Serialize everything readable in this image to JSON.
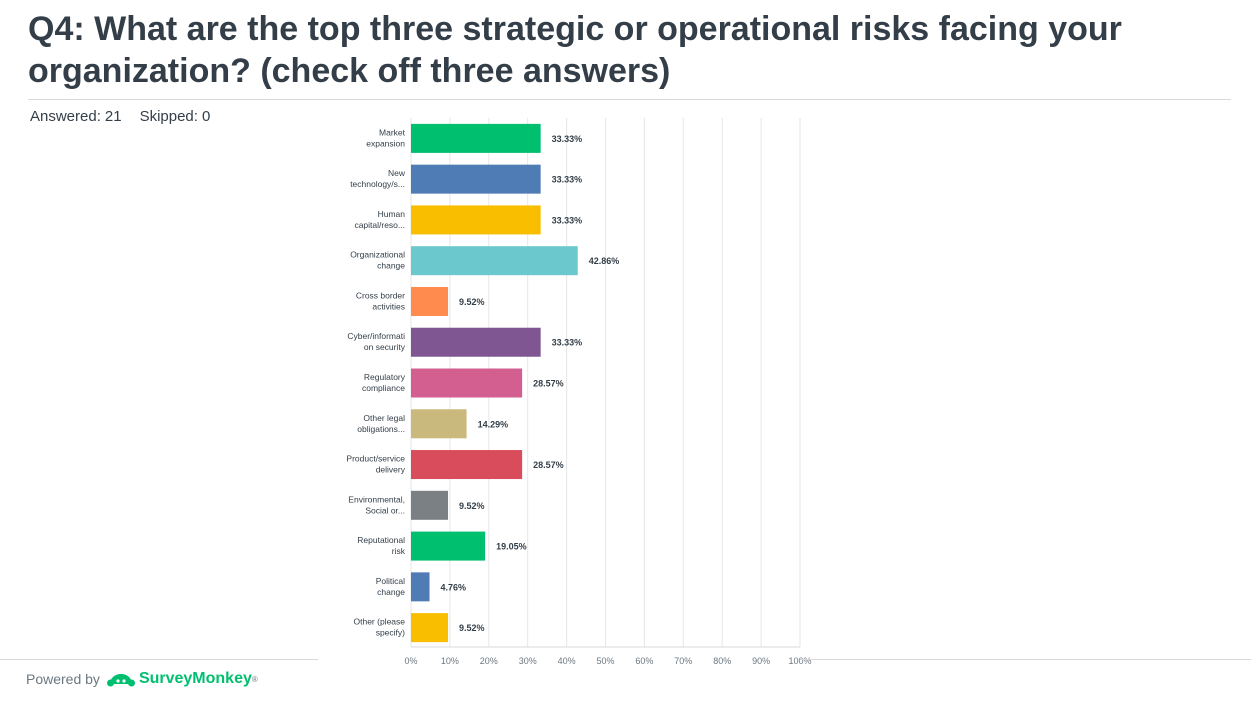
{
  "question": {
    "title": "Q4: What are the top three strategic or operational risks facing your organization? (check off three answers)",
    "answered_label": "Answered:",
    "answered_value": "21",
    "skipped_label": "Skipped:",
    "skipped_value": "0"
  },
  "footer": {
    "powered_by": "Powered by",
    "brand": "SurveyMonkey",
    "trademark": "®"
  },
  "chart_data": {
    "type": "bar",
    "orientation": "horizontal",
    "categories": [
      [
        "Market",
        "expansion"
      ],
      [
        "New",
        "technology/s..."
      ],
      [
        "Human",
        "capital/reso..."
      ],
      [
        "Organizational",
        "change"
      ],
      [
        "Cross border",
        "activities"
      ],
      [
        "Cyber/informati",
        "on security"
      ],
      [
        "Regulatory",
        "compliance"
      ],
      [
        "Other legal",
        "obligations..."
      ],
      [
        "Product/service",
        "delivery"
      ],
      [
        "Environmental,",
        "Social or..."
      ],
      [
        "Reputational",
        "risk"
      ],
      [
        "Political",
        "change"
      ],
      [
        "Other (please",
        "specify)"
      ]
    ],
    "values": [
      33.33,
      33.33,
      33.33,
      42.86,
      9.52,
      33.33,
      28.57,
      14.29,
      28.57,
      9.52,
      19.05,
      4.76,
      9.52
    ],
    "value_labels": [
      "33.33%",
      "33.33%",
      "33.33%",
      "42.86%",
      "9.52%",
      "33.33%",
      "28.57%",
      "14.29%",
      "28.57%",
      "9.52%",
      "19.05%",
      "4.76%",
      "9.52%"
    ],
    "colors": [
      "#00bf6f",
      "#507cb6",
      "#f9be00",
      "#6bc8cd",
      "#ff8b4f",
      "#7f5691",
      "#d25f90",
      "#c9b97d",
      "#d84c5c",
      "#7b8085",
      "#00bf6f",
      "#507cb6",
      "#f9be00"
    ],
    "xlim": [
      0,
      100
    ],
    "xticks": [
      "0%",
      "10%",
      "20%",
      "30%",
      "40%",
      "50%",
      "60%",
      "70%",
      "80%",
      "90%",
      "100%"
    ],
    "grid": true,
    "title": "",
    "xlabel": "",
    "ylabel": ""
  }
}
